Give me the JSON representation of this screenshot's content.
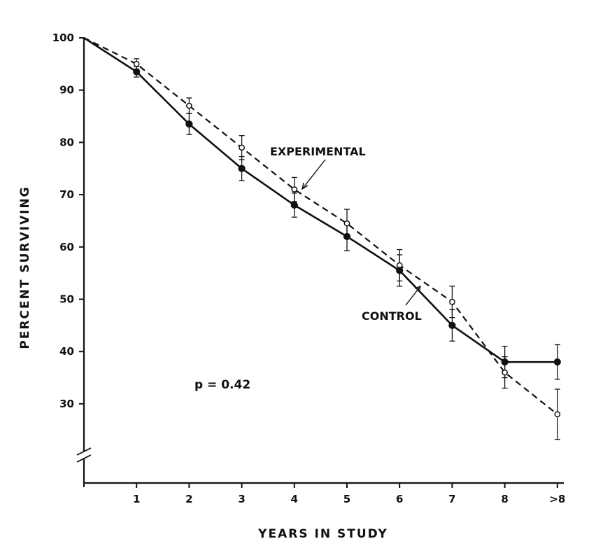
{
  "chart_data": {
    "type": "line",
    "title": "",
    "xlabel": "YEARS IN STUDY",
    "ylabel": "PERCENT SURVIVING",
    "x_tick_labels": [
      "1",
      "2",
      "3",
      "4",
      "5",
      "6",
      "7",
      "8",
      ">8"
    ],
    "y_ticks": [
      100,
      90,
      80,
      70,
      60,
      50,
      40,
      30
    ],
    "y_tick_labels": [
      "100",
      "90",
      "80",
      "70",
      "60",
      "50",
      "40",
      "30"
    ],
    "ylim": [
      15,
      100
    ],
    "axis_break": true,
    "series": [
      {
        "name": "EXPERIMENTAL",
        "style": "dashed",
        "marker": "open-circle",
        "x": [
          0,
          1,
          2,
          3,
          4,
          5,
          6,
          7,
          8,
          9
        ],
        "values": [
          100,
          95,
          87,
          79,
          71,
          64.5,
          56.5,
          49.5,
          36,
          28
        ],
        "error": [
          null,
          1,
          1.5,
          2.3,
          2.3,
          2.7,
          3,
          3,
          3,
          4.8
        ]
      },
      {
        "name": "CONTROL",
        "style": "solid",
        "marker": "filled-circle",
        "x": [
          0,
          1,
          2,
          3,
          4,
          5,
          6,
          7,
          8,
          9
        ],
        "values": [
          100,
          93.5,
          83.5,
          75,
          68,
          62,
          55.5,
          45,
          38,
          38
        ],
        "error": [
          null,
          1,
          2,
          2.3,
          2.3,
          2.7,
          3,
          3,
          3,
          3.3
        ]
      }
    ],
    "annotations": [
      {
        "text": "EXPERIMENTAL",
        "points_to": "EXPERIMENTAL"
      },
      {
        "text": "CONTROL",
        "points_to": "CONTROL"
      },
      {
        "text": "p = 0.42"
      }
    ]
  }
}
